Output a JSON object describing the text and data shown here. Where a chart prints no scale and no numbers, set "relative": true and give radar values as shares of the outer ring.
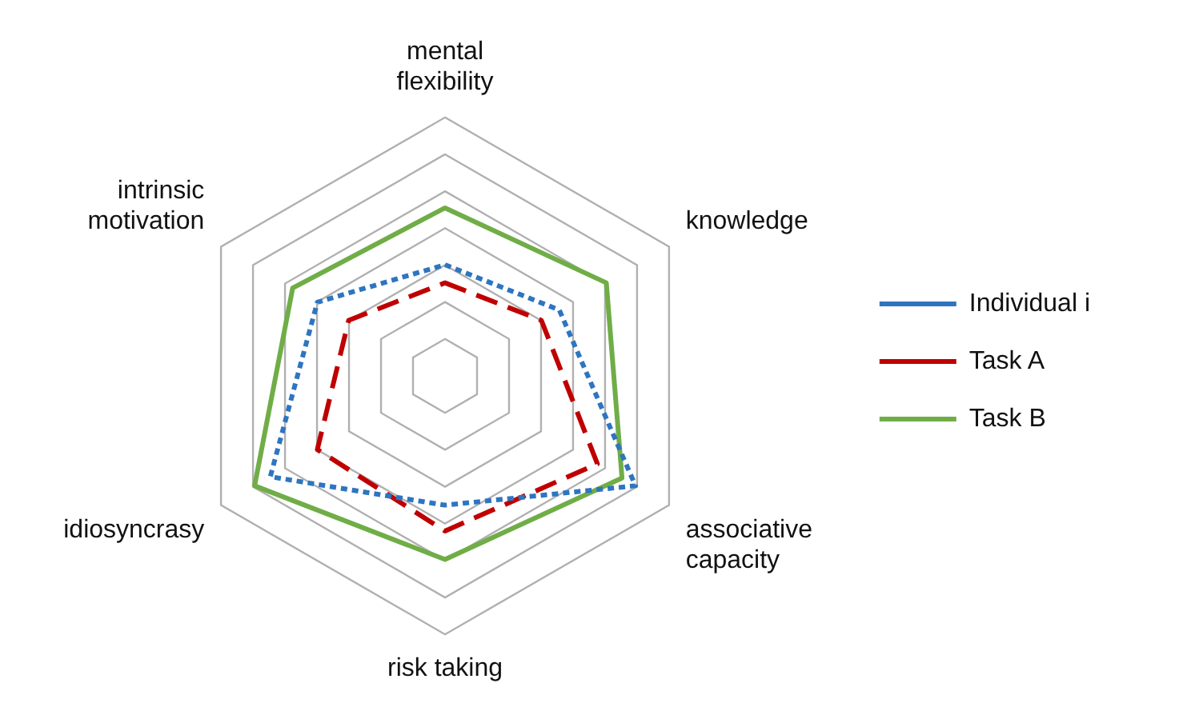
{
  "chart_data": {
    "type": "radar",
    "relative": true,
    "categories": [
      "mental flexibility",
      "knowledge",
      "associative capacity",
      "risk taking",
      "idiosyncrasy",
      "intrinsic motivation"
    ],
    "legend": "right",
    "series": [
      {
        "name": "Individual i",
        "color": "#2e75c0",
        "line_style": "dotted",
        "values": [
          0.43,
          0.51,
          0.85,
          0.5,
          0.78,
          0.57
        ]
      },
      {
        "name": "Task A",
        "color": "#c00000",
        "line_style": "dashed",
        "values": [
          0.36,
          0.43,
          0.68,
          0.6,
          0.57,
          0.43
        ]
      },
      {
        "name": "Task B",
        "color": "#70ad47",
        "line_style": "solid",
        "values": [
          0.65,
          0.72,
          0.79,
          0.71,
          0.85,
          0.68
        ]
      }
    ]
  }
}
